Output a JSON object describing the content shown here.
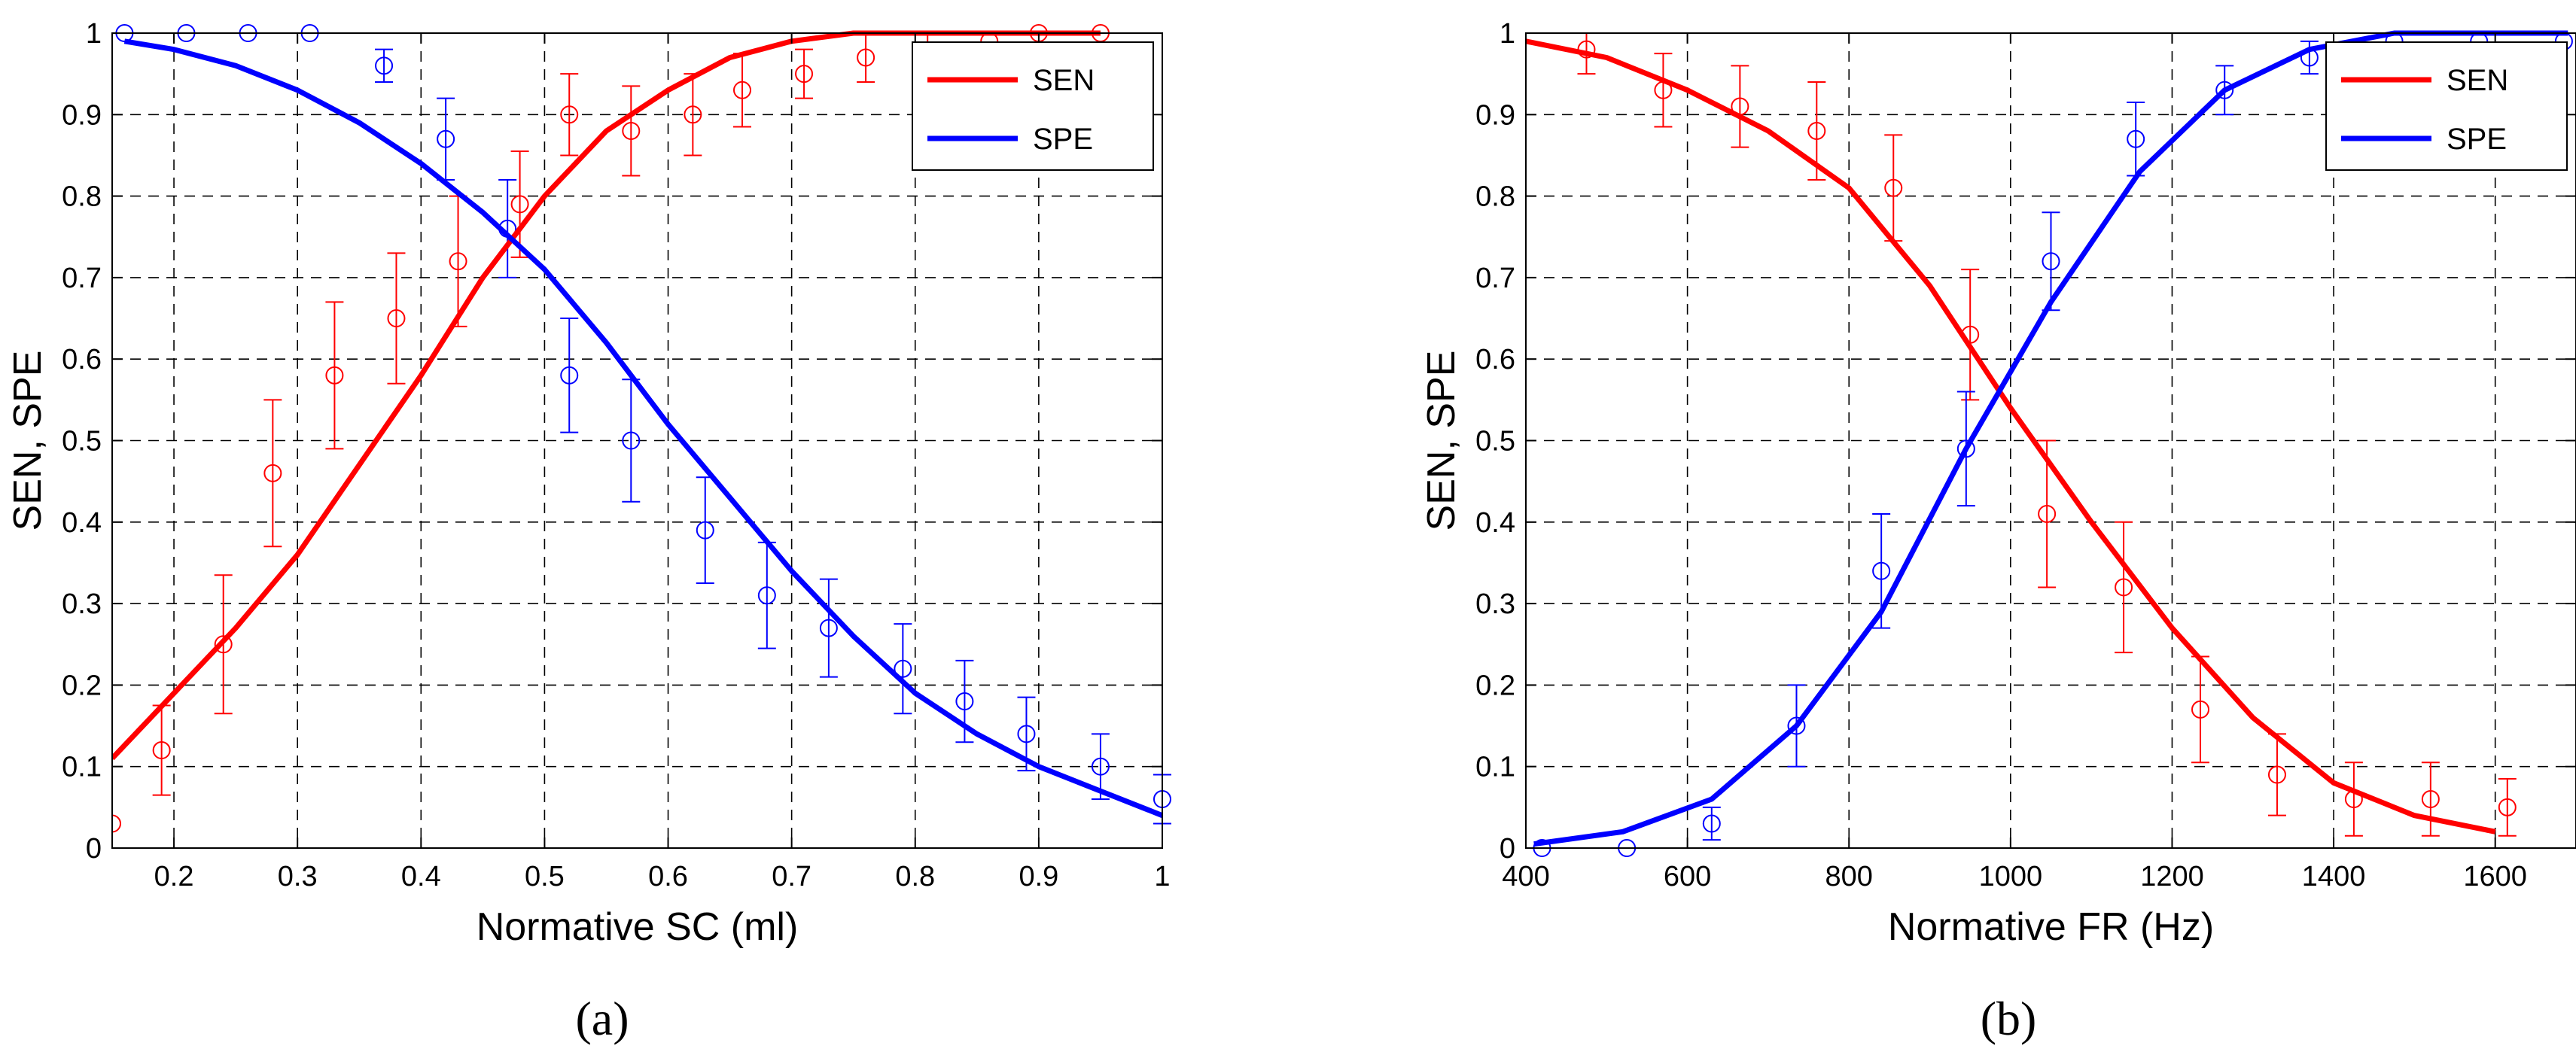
{
  "chart_data": [
    {
      "type": "line",
      "panel_label": "(a)",
      "xlabel": "Normative SC (ml)",
      "ylabel": "SEN, SPE",
      "xlim": [
        0.15,
        1.0
      ],
      "ylim": [
        0,
        1
      ],
      "xticks": [
        0.2,
        0.3,
        0.4,
        0.5,
        0.6,
        0.7,
        0.8,
        0.9,
        1
      ],
      "xtick_labels": [
        "0.2",
        "0.3",
        "0.4",
        "0.5",
        "0.6",
        "0.7",
        "0.8",
        "0.9",
        "1"
      ],
      "yticks": [
        0,
        0.1,
        0.2,
        0.3,
        0.4,
        0.5,
        0.6,
        0.7,
        0.8,
        0.9,
        1
      ],
      "ytick_labels": [
        "0",
        "0.1",
        "0.2",
        "0.3",
        "0.4",
        "0.5",
        "0.6",
        "0.7",
        "0.8",
        "0.9",
        "1"
      ],
      "grid": true,
      "legend_position": "top-right",
      "series": [
        {
          "name": "SEN",
          "color": "#ff0000",
          "x": [
            0.15,
            0.2,
            0.25,
            0.3,
            0.35,
            0.4,
            0.45,
            0.5,
            0.55,
            0.6,
            0.65,
            0.7,
            0.75,
            0.8,
            0.85,
            0.9,
            0.95
          ],
          "y": [
            0.11,
            0.19,
            0.27,
            0.36,
            0.47,
            0.58,
            0.7,
            0.8,
            0.88,
            0.93,
            0.97,
            0.99,
            1.0,
            1.0,
            1.0,
            1.0,
            1.0
          ]
        },
        {
          "name": "SPE",
          "color": "#0000ff",
          "x": [
            0.16,
            0.2,
            0.25,
            0.3,
            0.35,
            0.4,
            0.45,
            0.5,
            0.55,
            0.6,
            0.65,
            0.7,
            0.75,
            0.8,
            0.85,
            0.9,
            0.95,
            1.0
          ],
          "y": [
            0.99,
            0.98,
            0.96,
            0.93,
            0.89,
            0.84,
            0.78,
            0.71,
            0.62,
            0.52,
            0.43,
            0.34,
            0.26,
            0.19,
            0.14,
            0.1,
            0.07,
            0.04
          ]
        }
      ],
      "error_bars": [
        {
          "series": "SEN",
          "color": "#ff0000",
          "x": [
            0.15,
            0.19,
            0.24,
            0.28,
            0.33,
            0.38,
            0.43,
            0.48,
            0.52,
            0.57,
            0.62,
            0.66,
            0.71,
            0.76,
            0.81,
            0.86,
            0.9,
            0.95
          ],
          "y": [
            0.03,
            0.12,
            0.25,
            0.46,
            0.58,
            0.65,
            0.72,
            0.79,
            0.9,
            0.88,
            0.9,
            0.93,
            0.95,
            0.97,
            0.97,
            0.99,
            1.0,
            1.0
          ],
          "err": [
            0,
            0.055,
            0.085,
            0.09,
            0.09,
            0.08,
            0.08,
            0.065,
            0.05,
            0.055,
            0.05,
            0.045,
            0.03,
            0.03,
            0.03,
            0,
            0,
            0
          ]
        },
        {
          "series": "SPE",
          "color": "#0000ff",
          "x": [
            0.16,
            0.21,
            0.26,
            0.31,
            0.37,
            0.42,
            0.47,
            0.52,
            0.57,
            0.63,
            0.68,
            0.73,
            0.79,
            0.84,
            0.89,
            0.95,
            1.0
          ],
          "y": [
            1.0,
            1.0,
            1.0,
            1.0,
            0.96,
            0.87,
            0.76,
            0.58,
            0.5,
            0.39,
            0.31,
            0.27,
            0.22,
            0.18,
            0.14,
            0.1,
            0.06
          ],
          "err": [
            0,
            0,
            0,
            0,
            0.02,
            0.05,
            0.06,
            0.07,
            0.075,
            0.065,
            0.065,
            0.06,
            0.055,
            0.05,
            0.045,
            0.04,
            0.03
          ]
        }
      ]
    },
    {
      "type": "line",
      "panel_label": "(b)",
      "xlabel": "Normative FR (Hz)",
      "ylabel": "SEN, SPE",
      "xlim": [
        400,
        1700
      ],
      "ylim": [
        0,
        1
      ],
      "xticks": [
        400,
        600,
        800,
        1000,
        1200,
        1400,
        1600
      ],
      "xtick_labels": [
        "400",
        "600",
        "800",
        "1000",
        "1200",
        "1400",
        "1600"
      ],
      "yticks": [
        0,
        0.1,
        0.2,
        0.3,
        0.4,
        0.5,
        0.6,
        0.7,
        0.8,
        0.9,
        1
      ],
      "ytick_labels": [
        "0",
        "0.1",
        "0.2",
        "0.3",
        "0.4",
        "0.5",
        "0.6",
        "0.7",
        "0.8",
        "0.9",
        "1"
      ],
      "grid": true,
      "legend_position": "top-right",
      "series": [
        {
          "name": "SEN",
          "color": "#ff0000",
          "x": [
            400,
            500,
            600,
            700,
            800,
            900,
            1000,
            1100,
            1200,
            1300,
            1400,
            1500,
            1600
          ],
          "y": [
            0.99,
            0.97,
            0.93,
            0.88,
            0.81,
            0.69,
            0.54,
            0.4,
            0.27,
            0.16,
            0.08,
            0.04,
            0.02
          ]
        },
        {
          "name": "SPE",
          "color": "#0000ff",
          "x": [
            410,
            520,
            630,
            735,
            840,
            945,
            1050,
            1160,
            1265,
            1370,
            1475,
            1580,
            1690
          ],
          "y": [
            0.005,
            0.02,
            0.06,
            0.15,
            0.29,
            0.49,
            0.67,
            0.83,
            0.93,
            0.98,
            1.0,
            1.0,
            1.0
          ]
        }
      ],
      "error_bars": [
        {
          "series": "SEN",
          "color": "#ff0000",
          "x": [
            475,
            570,
            665,
            760,
            855,
            950,
            1045,
            1140,
            1235,
            1330,
            1425,
            1520,
            1615
          ],
          "y": [
            0.98,
            0.93,
            0.91,
            0.88,
            0.81,
            0.63,
            0.41,
            0.32,
            0.17,
            0.09,
            0.06,
            0.06,
            0.05
          ],
          "err": [
            0.03,
            0.045,
            0.05,
            0.06,
            0.065,
            0.08,
            0.09,
            0.08,
            0.065,
            0.05,
            0.045,
            0.045,
            0.035
          ]
        },
        {
          "series": "SPE",
          "color": "#0000ff",
          "x": [
            420,
            525,
            630,
            735,
            840,
            945,
            1050,
            1155,
            1265,
            1370,
            1475,
            1580,
            1685
          ],
          "y": [
            0.0,
            0.0,
            0.03,
            0.15,
            0.34,
            0.49,
            0.72,
            0.87,
            0.93,
            0.97,
            0.99,
            0.99,
            0.99
          ],
          "err": [
            0,
            0,
            0.02,
            0.05,
            0.07,
            0.07,
            0.06,
            0.045,
            0.03,
            0.02,
            0,
            0,
            0
          ]
        }
      ]
    }
  ]
}
